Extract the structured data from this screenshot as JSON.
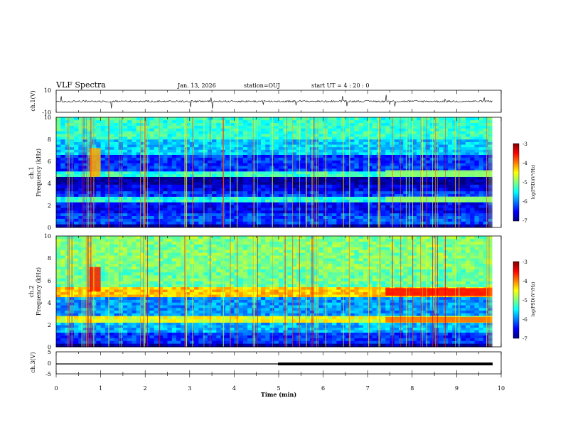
{
  "header": {
    "title": "VLF Spectra",
    "date": "Jan. 13, 2026",
    "station": "station=OUJ",
    "start_ut": "start  UT =   4 : 20 : 0"
  },
  "colors": {
    "colormap": [
      "#00007f",
      "#0000ff",
      "#007fff",
      "#00ffff",
      "#7fff7f",
      "#ffff00",
      "#ff7f00",
      "#ff0000",
      "#7f0000"
    ]
  },
  "chart_data": [
    {
      "type": "line",
      "name": "ch1-waveform",
      "ylabel": "ch.1(V)",
      "ylim": [
        -10,
        10
      ],
      "ytick_labels": [
        "10",
        "-10"
      ],
      "baseline_v": 0,
      "x_range_min": [
        0,
        9.8
      ]
    },
    {
      "type": "heatmap",
      "name": "ch1-spectrogram",
      "ylabel_channel": "ch.1",
      "ylabel": "Frequency (kHz)",
      "ylim": [
        0,
        10
      ],
      "ytick_labels": [
        "0",
        "2",
        "4",
        "6",
        "8",
        "10"
      ],
      "x_range_min": [
        0,
        9.8
      ],
      "bands": [
        {
          "f0": 0.0,
          "f1": 0.3,
          "level": -6.9
        },
        {
          "f0": 0.3,
          "f1": 1.3,
          "level": -6.2
        },
        {
          "f0": 1.3,
          "f1": 2.3,
          "level": -6.5
        },
        {
          "f0": 2.3,
          "f1": 2.8,
          "level": -5.4
        },
        {
          "f0": 2.8,
          "f1": 3.3,
          "level": -6.3
        },
        {
          "f0": 3.3,
          "f1": 3.9,
          "level": -6.6
        },
        {
          "f0": 3.9,
          "f1": 4.6,
          "level": -6.9
        },
        {
          "f0": 4.6,
          "f1": 5.1,
          "level": -5.3
        },
        {
          "f0": 5.1,
          "f1": 6.6,
          "level": -6.3
        },
        {
          "f0": 6.6,
          "f1": 8.0,
          "level": -5.7
        },
        {
          "f0": 8.0,
          "f1": 10.0,
          "level": -5.3
        }
      ],
      "events": [
        {
          "t0": 0.75,
          "t1": 1.0,
          "f0": 4.6,
          "f1": 7.2,
          "level": -4.2
        },
        {
          "t0": 7.4,
          "t1": 9.8,
          "f0": 4.6,
          "f1": 5.2,
          "level": -4.9
        },
        {
          "t0": 7.4,
          "t1": 9.8,
          "f0": 2.3,
          "f1": 2.8,
          "level": -4.9
        }
      ]
    },
    {
      "type": "heatmap",
      "name": "ch2-spectrogram",
      "ylabel_channel": "ch.2",
      "ylabel": "Frequency (kHz)",
      "ylim": [
        0,
        10
      ],
      "ytick_labels": [
        "0",
        "2",
        "4",
        "6",
        "8",
        "10"
      ],
      "x_range_min": [
        0,
        9.8
      ],
      "bands": [
        {
          "f0": 0.0,
          "f1": 0.3,
          "level": -6.9
        },
        {
          "f0": 0.3,
          "f1": 1.3,
          "level": -6.3
        },
        {
          "f0": 1.3,
          "f1": 2.2,
          "level": -5.8
        },
        {
          "f0": 2.2,
          "f1": 2.8,
          "level": -4.6
        },
        {
          "f0": 2.8,
          "f1": 4.5,
          "level": -5.9
        },
        {
          "f0": 4.5,
          "f1": 5.4,
          "level": -4.3
        },
        {
          "f0": 5.4,
          "f1": 7.0,
          "level": -5.1
        },
        {
          "f0": 7.0,
          "f1": 10.0,
          "level": -5.0
        }
      ],
      "events": [
        {
          "t0": 0.75,
          "t1": 1.0,
          "f0": 5.0,
          "f1": 7.2,
          "level": -3.6
        },
        {
          "t0": 7.4,
          "t1": 9.8,
          "f0": 4.6,
          "f1": 5.3,
          "level": -3.5
        },
        {
          "t0": 7.4,
          "t1": 9.8,
          "f0": 2.2,
          "f1": 2.7,
          "level": -3.9
        }
      ]
    },
    {
      "type": "line",
      "name": "ch3-waveform",
      "ylabel": "ch.3(V)",
      "ylim": [
        -5,
        5
      ],
      "ytick_labels": [
        "5",
        "0",
        "-5"
      ],
      "baseline_v": 0,
      "x_range_min": [
        0,
        9.8
      ]
    }
  ],
  "x_axis": {
    "label": "Time (min)",
    "tick_labels": [
      "0",
      "1",
      "2",
      "3",
      "4",
      "5",
      "6",
      "7",
      "8",
      "9",
      "10"
    ],
    "range": [
      0,
      10
    ]
  },
  "colorbars": [
    {
      "name": "colorbar-ch1",
      "tick_labels": [
        "-3",
        "-4",
        "-5",
        "-6",
        "-7"
      ],
      "range": [
        -7,
        -3
      ],
      "label": "log(PSD)(V²/Hz)"
    },
    {
      "name": "colorbar-ch2",
      "tick_labels": [
        "-3",
        "-4",
        "-5",
        "-6",
        "-7"
      ],
      "range": [
        -7,
        -3
      ],
      "label": "log(PSD)(V²/Hz)"
    }
  ]
}
